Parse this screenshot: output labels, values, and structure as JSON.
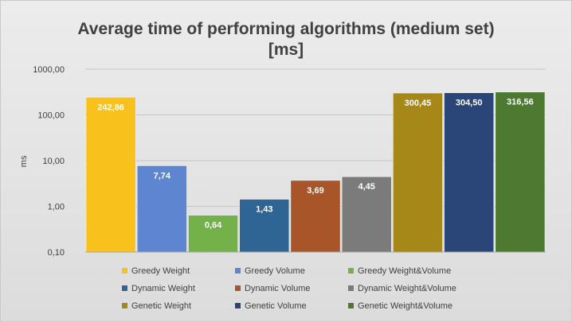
{
  "chart_data": {
    "type": "bar",
    "title": "Average time of performing algorithms (medium set) [ms]",
    "title_lines": [
      "Average time of performing algorithms (medium set)",
      "[ms]"
    ],
    "ylabel": "ms",
    "xlabel": "",
    "yscale": "log",
    "ylim": [
      0.1,
      1000
    ],
    "yticks": [
      0.1,
      1,
      10,
      100,
      1000
    ],
    "ytick_labels": [
      "0,10",
      "1,00",
      "10,00",
      "100,00",
      "1000,00"
    ],
    "grid": true,
    "legend_position": "bottom",
    "series": [
      {
        "name": "Greedy Weight",
        "value": 242.86,
        "label": "242,86",
        "color": "#f9c11c"
      },
      {
        "name": "Greedy Volume",
        "value": 7.74,
        "label": "7,74",
        "color": "#5e86d0"
      },
      {
        "name": "Greedy Weight&Volume",
        "value": 0.64,
        "label": "0,64",
        "color": "#74b14b"
      },
      {
        "name": "Dynamic Weight",
        "value": 1.43,
        "label": "1,43",
        "color": "#2f6595"
      },
      {
        "name": "Dynamic Volume",
        "value": 3.69,
        "label": "3,69",
        "color": "#a9552a"
      },
      {
        "name": "Dynamic Weight&Volume",
        "value": 4.45,
        "label": "4,45",
        "color": "#7b7b7b"
      },
      {
        "name": "Genetic Weight",
        "value": 300.45,
        "label": "300,45",
        "color": "#a58818"
      },
      {
        "name": "Genetic Volume",
        "value": 304.5,
        "label": "304,50",
        "color": "#2a4678"
      },
      {
        "name": "Genetic Weight&Volume",
        "value": 316.56,
        "label": "316,56",
        "color": "#4d7a30"
      }
    ]
  }
}
